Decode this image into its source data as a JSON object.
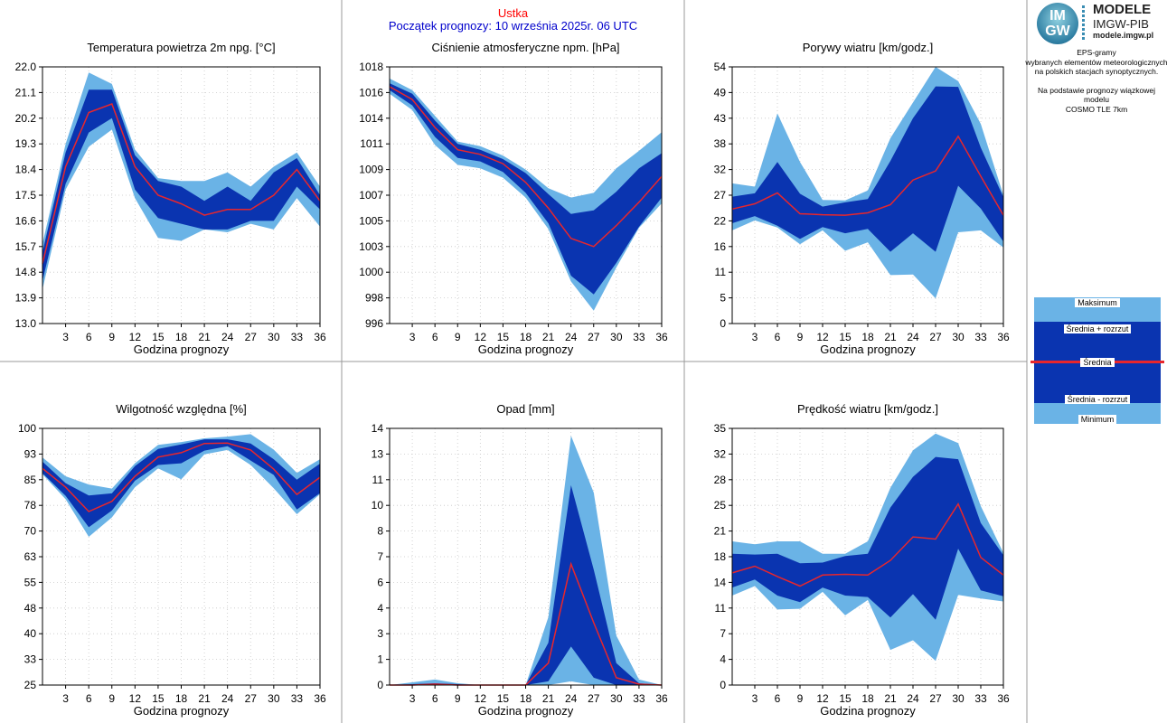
{
  "header": {
    "station": "Ustka",
    "forecast_start": "Początek prognozy: 10 września 2025r. 06 UTC"
  },
  "logo": {
    "mark_top": "IM",
    "mark_bottom": "GW",
    "title": "MODELE",
    "subtitle": "IMGW-PIB",
    "url": "modele.imgw.pl"
  },
  "description": {
    "line1": "EPS-gramy",
    "line2": "wybranych elementów meteorologicznych",
    "line3": "na polskich stacjach  synoptycznych.",
    "line4": "Na podstawie prognozy wiązkowej modelu",
    "line5": "COSMO TLE 7km"
  },
  "legend": {
    "max": "Maksimum",
    "mean_plus": "Średnia + rozrzut",
    "mean": "Średnia",
    "mean_minus": "Średnia - rozrzut",
    "min": "Minimum"
  },
  "colors": {
    "outer_band": "#6ab3e6",
    "inner_band": "#0a34b0",
    "mean_line": "#e8262c",
    "grid": "#c8c8c8",
    "station_text": "#ff0000",
    "date_text": "#0000cc"
  },
  "chart_data": [
    {
      "type": "area",
      "title": "Temperatura powietrza 2m npg. [°C]",
      "xlabel": "Godzina prognozy",
      "x": [
        0,
        3,
        6,
        9,
        12,
        15,
        18,
        21,
        24,
        27,
        30,
        33,
        36
      ],
      "xticks": [
        "3",
        "6",
        "9",
        "12",
        "15",
        "18",
        "21",
        "24",
        "27",
        "30",
        "33",
        "36"
      ],
      "ylim": [
        13.0,
        22.0
      ],
      "yticks": [
        "13.0",
        "13.9",
        "14.8",
        "15.7",
        "16.6",
        "17.5",
        "18.4",
        "19.3",
        "20.2",
        "21.1",
        "22.0"
      ],
      "max": [
        15.8,
        19.3,
        21.8,
        21.4,
        19.1,
        18.1,
        18.0,
        18.0,
        18.3,
        17.8,
        18.5,
        19.0,
        17.8
      ],
      "mean_plus": [
        15.5,
        19.0,
        21.2,
        21.2,
        18.9,
        18.0,
        17.8,
        17.3,
        17.8,
        17.3,
        18.3,
        18.8,
        17.5
      ],
      "mean": [
        15.1,
        18.5,
        20.4,
        20.7,
        18.5,
        17.5,
        17.2,
        16.8,
        17.0,
        17.0,
        17.5,
        18.4,
        17.3
      ],
      "mean_minus": [
        14.5,
        17.9,
        19.7,
        20.2,
        17.7,
        16.7,
        16.5,
        16.3,
        16.3,
        16.6,
        16.6,
        17.8,
        17.0
      ],
      "min": [
        14.2,
        17.7,
        19.2,
        19.8,
        17.4,
        16.0,
        15.9,
        16.3,
        16.2,
        16.5,
        16.3,
        17.4,
        16.4
      ]
    },
    {
      "type": "area",
      "title": "Ciśnienie atmosferyczne npm. [hPa]",
      "xlabel": "Godzina prognozy",
      "x": [
        0,
        3,
        6,
        9,
        12,
        15,
        18,
        21,
        24,
        27,
        30,
        33,
        36
      ],
      "xticks": [
        "3",
        "6",
        "9",
        "12",
        "15",
        "18",
        "21",
        "24",
        "27",
        "30",
        "33",
        "36"
      ],
      "ylim": [
        996,
        1018
      ],
      "yticks": [
        "996",
        "998",
        "1000",
        "1003",
        "1005",
        "1007",
        "1009",
        "1011",
        "1014",
        "1016",
        "1018"
      ],
      "max": [
        1017.0,
        1016.0,
        1013.8,
        1011.6,
        1011.2,
        1010.4,
        1009.2,
        1007.6,
        1006.8,
        1007.2,
        1009.3,
        1010.8,
        1012.4
      ],
      "mean_plus": [
        1016.6,
        1015.7,
        1013.4,
        1011.4,
        1010.9,
        1010.1,
        1008.9,
        1007.1,
        1005.4,
        1005.7,
        1007.3,
        1009.3,
        1010.6
      ],
      "mean": [
        1016.3,
        1015.2,
        1012.8,
        1010.9,
        1010.5,
        1009.7,
        1008.1,
        1005.9,
        1003.3,
        1002.6,
        1004.4,
        1006.4,
        1008.6
      ],
      "mean_minus": [
        1016.0,
        1014.7,
        1012.0,
        1010.2,
        1009.9,
        1009.0,
        1007.2,
        1004.6,
        1000.1,
        998.5,
        1001.2,
        1004.3,
        1006.8
      ],
      "min": [
        1015.7,
        1014.3,
        1011.3,
        1009.6,
        1009.3,
        1008.5,
        1006.8,
        1004.1,
        999.6,
        997.1,
        1000.8,
        1004.2,
        1006.3
      ]
    },
    {
      "type": "area",
      "title": "Porywy wiatru [km/godz.]",
      "xlabel": "Godzina prognozy",
      "x": [
        0,
        3,
        6,
        9,
        12,
        15,
        18,
        21,
        24,
        27,
        30,
        33,
        36
      ],
      "xticks": [
        "3",
        "6",
        "9",
        "12",
        "15",
        "18",
        "21",
        "24",
        "27",
        "30",
        "33",
        "36"
      ],
      "ylim": [
        0,
        54
      ],
      "yticks": [
        "0",
        "5",
        "11",
        "16",
        "22",
        "27",
        "32",
        "38",
        "43",
        "49",
        "54"
      ],
      "max": [
        29.5,
        28.8,
        44.2,
        34.0,
        26.0,
        25.9,
        28.0,
        39.0,
        46.5,
        54.0,
        51.0,
        42.0,
        27.0
      ],
      "mean_plus": [
        26.7,
        27.4,
        34.0,
        27.3,
        24.6,
        25.5,
        26.2,
        34.2,
        43.2,
        49.9,
        49.8,
        37.0,
        26.6
      ],
      "mean": [
        24.1,
        25.2,
        27.5,
        23.1,
        22.9,
        22.8,
        23.3,
        25.0,
        30.2,
        32.1,
        39.4,
        31.0,
        22.8
      ],
      "mean_minus": [
        21.1,
        22.6,
        20.6,
        17.8,
        20.3,
        19.0,
        19.9,
        15.1,
        19.0,
        15.1,
        29.0,
        24.2,
        17.2
      ],
      "min": [
        19.6,
        21.7,
        20.2,
        16.7,
        19.6,
        15.3,
        17.1,
        10.2,
        10.3,
        5.3,
        19.2,
        19.6,
        16.0
      ]
    },
    {
      "type": "area",
      "title": "Wilgotność względna [%]",
      "xlabel": "Godzina prognozy",
      "x": [
        0,
        3,
        6,
        9,
        12,
        15,
        18,
        21,
        24,
        27,
        30,
        33,
        36
      ],
      "xticks": [
        "3",
        "6",
        "9",
        "12",
        "15",
        "18",
        "21",
        "24",
        "27",
        "30",
        "33",
        "36"
      ],
      "ylim": [
        25,
        100
      ],
      "yticks": [
        "25",
        "33",
        "40",
        "48",
        "55",
        "63",
        "70",
        "78",
        "85",
        "93",
        "100"
      ],
      "max": [
        91.5,
        86.0,
        83.6,
        82.4,
        89.8,
        95.2,
        96.0,
        97.1,
        97.6,
        98.3,
        93.8,
        87.0,
        91.0
      ],
      "mean_plus": [
        90.3,
        84.0,
        80.4,
        81.0,
        89.0,
        94.0,
        95.3,
        96.8,
        96.8,
        95.6,
        91.0,
        85.0,
        89.7
      ],
      "mean": [
        88.3,
        82.8,
        75.7,
        78.7,
        86.0,
        91.6,
        92.9,
        95.6,
        95.7,
        93.7,
        88.1,
        80.7,
        85.7
      ],
      "mean_minus": [
        86.9,
        80.3,
        71.1,
        76.0,
        84.7,
        89.3,
        89.8,
        93.5,
        94.8,
        90.6,
        86.4,
        76.3,
        81.1
      ],
      "min": [
        86.6,
        79.3,
        68.3,
        74.0,
        82.8,
        88.3,
        85.1,
        92.4,
        93.7,
        89.3,
        82.5,
        74.9,
        80.8
      ]
    },
    {
      "type": "area",
      "title": "Opad [mm]",
      "xlabel": "Godzina prognozy",
      "x": [
        0,
        3,
        6,
        9,
        12,
        15,
        18,
        21,
        24,
        27,
        30,
        33,
        36
      ],
      "xticks": [
        "3",
        "6",
        "9",
        "12",
        "15",
        "18",
        "21",
        "24",
        "27",
        "30",
        "33",
        "36"
      ],
      "ylim": [
        0,
        14
      ],
      "yticks": [
        "0",
        "1",
        "3",
        "4",
        "6",
        "7",
        "8",
        "10",
        "11",
        "13",
        "14"
      ],
      "max": [
        0.0,
        0.15,
        0.3,
        0.1,
        0.0,
        0.0,
        0.0,
        3.7,
        13.6,
        10.5,
        2.7,
        0.3,
        0.0
      ],
      "mean_plus": [
        0.0,
        0.05,
        0.1,
        0.05,
        0.0,
        0.0,
        0.0,
        2.3,
        10.9,
        6.3,
        1.2,
        0.1,
        0.0
      ],
      "mean": [
        0.0,
        0.0,
        0.05,
        0.0,
        0.0,
        0.0,
        0.0,
        1.2,
        6.6,
        3.4,
        0.4,
        0.05,
        0.0
      ],
      "mean_minus": [
        0.0,
        0.0,
        0.0,
        0.0,
        0.0,
        0.0,
        0.0,
        0.2,
        2.1,
        0.4,
        0.0,
        0.0,
        0.0
      ],
      "min": [
        0.0,
        0.0,
        0.0,
        0.0,
        0.0,
        0.0,
        0.0,
        0.0,
        0.2,
        0.0,
        0.0,
        0.0,
        0.0
      ]
    },
    {
      "type": "area",
      "title": "Prędkość wiatru [km/godz.]",
      "xlabel": "Godzina prognozy",
      "x": [
        0,
        3,
        6,
        9,
        12,
        15,
        18,
        21,
        24,
        27,
        30,
        33,
        36
      ],
      "xticks": [
        "3",
        "6",
        "9",
        "12",
        "15",
        "18",
        "21",
        "24",
        "27",
        "30",
        "33",
        "36"
      ],
      "ylim": [
        0,
        35
      ],
      "yticks": [
        "0",
        "4",
        "7",
        "11",
        "14",
        "18",
        "21",
        "25",
        "28",
        "32",
        "35"
      ],
      "max": [
        19.6,
        19.2,
        19.6,
        19.6,
        17.9,
        17.9,
        19.6,
        26.9,
        32.0,
        34.3,
        33.0,
        24.4,
        18.0
      ],
      "mean_plus": [
        17.9,
        17.8,
        17.9,
        16.6,
        16.7,
        17.6,
        17.9,
        24.2,
        28.4,
        31.1,
        30.8,
        22.1,
        17.7
      ],
      "mean": [
        15.3,
        16.2,
        14.8,
        13.5,
        15.0,
        15.1,
        15.0,
        17.0,
        20.2,
        19.9,
        24.7,
        17.4,
        15.0
      ],
      "mean_minus": [
        13.3,
        14.4,
        12.2,
        11.3,
        13.3,
        12.2,
        12.0,
        9.2,
        12.4,
        8.9,
        18.6,
        12.9,
        12.1
      ],
      "min": [
        12.2,
        13.5,
        10.3,
        10.4,
        12.7,
        9.5,
        11.6,
        4.8,
        6.1,
        3.3,
        12.3,
        11.8,
        11.4
      ]
    }
  ]
}
